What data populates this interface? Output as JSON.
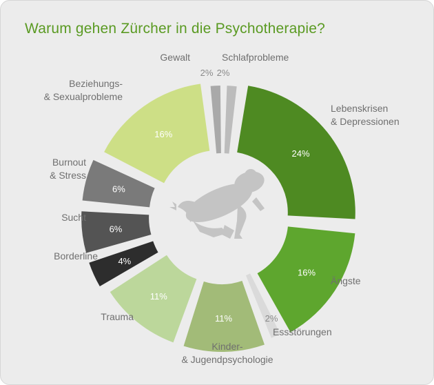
{
  "title": "Warum gehen Zürcher in die Psychotherapie?",
  "chart_data": {
    "type": "pie",
    "subtype": "exploded-donut",
    "title": "Warum gehen Zürcher in die Psychotherapie?",
    "unit": "%",
    "slices": [
      {
        "label_lines": [
          "Lebenskrisen",
          "& Depressionen"
        ],
        "value": 24,
        "value_label": "24%",
        "color": "#4e8a22"
      },
      {
        "label_lines": [
          "Ängste"
        ],
        "value": 16,
        "value_label": "16%",
        "color": "#5ea62e"
      },
      {
        "label_lines": [
          "Essstörungen"
        ],
        "value": 2,
        "value_label": "2%",
        "color": "#dadada"
      },
      {
        "label_lines": [
          "Kinder-",
          "& Jugendpsychologie"
        ],
        "value": 11,
        "value_label": "11%",
        "color": "#a2bb78"
      },
      {
        "label_lines": [
          "Trauma"
        ],
        "value": 11,
        "value_label": "11%",
        "color": "#bcd79b"
      },
      {
        "label_lines": [
          "Borderline"
        ],
        "value": 4,
        "value_label": "4%",
        "color": "#2d2d2d"
      },
      {
        "label_lines": [
          "Sucht"
        ],
        "value": 6,
        "value_label": "6%",
        "color": "#545454"
      },
      {
        "label_lines": [
          "Burnout",
          "& Stress"
        ],
        "value": 6,
        "value_label": "6%",
        "color": "#7a7a7a"
      },
      {
        "label_lines": [
          "Beziehungs-",
          "& Sexualprobleme"
        ],
        "value": 16,
        "value_label": "16%",
        "color": "#cddf86"
      },
      {
        "label_lines": [
          "Gewalt"
        ],
        "value": 2,
        "value_label": "2%",
        "color": "#a9a9a9"
      },
      {
        "label_lines": [
          "Schlafprobleme"
        ],
        "value": 2,
        "value_label": "2%",
        "color": "#bcbcbc"
      }
    ],
    "center_icon": "frog-icon"
  }
}
